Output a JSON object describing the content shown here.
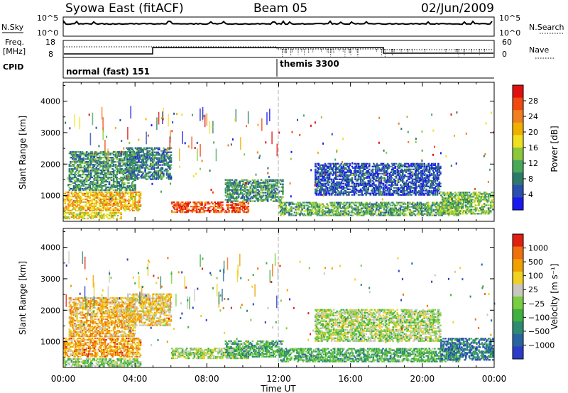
{
  "header": {
    "station": "Syowa East (fitACF)",
    "beam": "Beam 05",
    "date": "02/Jun/2009"
  },
  "strips": {
    "nsky_label": "N.Sky",
    "nsearch_label": "N.Search",
    "nsky_ticks": [
      "10^5",
      "10^0"
    ],
    "nsearch_ticks": [
      "10^5",
      "10^0"
    ],
    "freq_label": "Freq.",
    "freq_unit": "[MHz]",
    "freq_ticks": [
      "18",
      "8"
    ],
    "nave_label": "Nave",
    "nave_ticks": [
      "60",
      "0"
    ],
    "cpid_label": "CPID",
    "cpid_modes": [
      {
        "name": "normal (fast) 151",
        "start_hour": 0
      },
      {
        "name": "themis 3300",
        "start_hour": 12
      }
    ]
  },
  "axes": {
    "xlabel": "Time UT",
    "x_ticks": [
      "00:00",
      "04:00",
      "08:00",
      "12:00",
      "16:00",
      "20:00",
      "00:00"
    ],
    "x_range_hours": [
      0,
      24
    ],
    "ylabel": "Slant Range [km]",
    "y_ticks": [
      "4000",
      "3000",
      "2000",
      "1000"
    ],
    "y_range_km": [
      180,
      4600
    ]
  },
  "colorbars": {
    "power": {
      "label": "Power [dB]",
      "ticks": [
        "28",
        "24",
        "20",
        "16",
        "12",
        "8",
        "4"
      ],
      "colors": [
        "#1a1af0",
        "#2a4fb0",
        "#2e7a6a",
        "#4aa85a",
        "#8cc83c",
        "#f0e020",
        "#f0b000",
        "#f08020",
        "#f04a10",
        "#e01010"
      ]
    },
    "velocity": {
      "label": "Velocity [m s⁻¹]",
      "ticks": [
        "1000",
        "500",
        "100",
        "25",
        "−25",
        "−100",
        "−500",
        "−1000"
      ],
      "colors": [
        "#2a3cc8",
        "#2a64a0",
        "#2e8a70",
        "#40b040",
        "#78d040",
        "#c8c8c0",
        "#f0d020",
        "#f0a000",
        "#f07010",
        "#e02010"
      ]
    }
  },
  "chart_data": [
    {
      "type": "heatmap",
      "title": "Power",
      "xlabel": "Time UT",
      "ylabel": "Slant Range [km]",
      "x_range_hours": [
        0,
        24
      ],
      "y_range_km": [
        180,
        4600
      ],
      "colorbar_label": "Power [dB]",
      "colorbar_ticks": [
        28,
        24,
        20,
        16,
        12,
        8,
        4
      ],
      "regions": [
        {
          "t": [
            0,
            3.2
          ],
          "r": [
            250,
            450
          ],
          "level": 0.55
        },
        {
          "t": [
            0,
            4.3
          ],
          "r": [
            500,
            1100
          ],
          "level": 0.65
        },
        {
          "t": [
            0.3,
            4.0
          ],
          "r": [
            1150,
            2400
          ],
          "level": 0.3
        },
        {
          "t": [
            3.5,
            6.0
          ],
          "r": [
            1500,
            2500
          ],
          "level": 0.25
        },
        {
          "t": [
            6.0,
            10.3
          ],
          "r": [
            450,
            800
          ],
          "level": 0.85
        },
        {
          "t": [
            9.0,
            12.2
          ],
          "r": [
            800,
            1500
          ],
          "level": 0.3
        },
        {
          "t": [
            12.0,
            22.0
          ],
          "r": [
            350,
            800
          ],
          "level": 0.35
        },
        {
          "t": [
            14.0,
            21.0
          ],
          "r": [
            1000,
            2000
          ],
          "level": 0.15
        },
        {
          "t": [
            21.0,
            23.9
          ],
          "r": [
            400,
            1100
          ],
          "level": 0.4
        }
      ]
    },
    {
      "type": "heatmap",
      "title": "Velocity",
      "xlabel": "Time UT",
      "ylabel": "Slant Range [km]",
      "x_range_hours": [
        0,
        24
      ],
      "y_range_km": [
        180,
        4600
      ],
      "colorbar_label": "Velocity [m s⁻¹]",
      "colorbar_ticks": [
        1000,
        500,
        100,
        25,
        -25,
        -100,
        -500,
        -1000
      ],
      "regions": [
        {
          "t": [
            0,
            4.3
          ],
          "r": [
            200,
            450
          ],
          "level": 0.45
        },
        {
          "t": [
            0,
            4.3
          ],
          "r": [
            500,
            1100
          ],
          "level": 0.75
        },
        {
          "t": [
            0.3,
            4.0
          ],
          "r": [
            1150,
            2400
          ],
          "level": 0.7
        },
        {
          "t": [
            3.5,
            6.0
          ],
          "r": [
            1500,
            2500
          ],
          "level": 0.65
        },
        {
          "t": [
            6.0,
            10.3
          ],
          "r": [
            450,
            800
          ],
          "level": 0.5
        },
        {
          "t": [
            9.0,
            12.2
          ],
          "r": [
            500,
            1000
          ],
          "level": 0.35
        },
        {
          "t": [
            12.0,
            22.0
          ],
          "r": [
            350,
            800
          ],
          "level": 0.35
        },
        {
          "t": [
            14.0,
            21.0
          ],
          "r": [
            1000,
            2000
          ],
          "level": 0.5
        },
        {
          "t": [
            21.0,
            23.9
          ],
          "r": [
            400,
            1100
          ],
          "level": 0.2
        }
      ]
    }
  ]
}
